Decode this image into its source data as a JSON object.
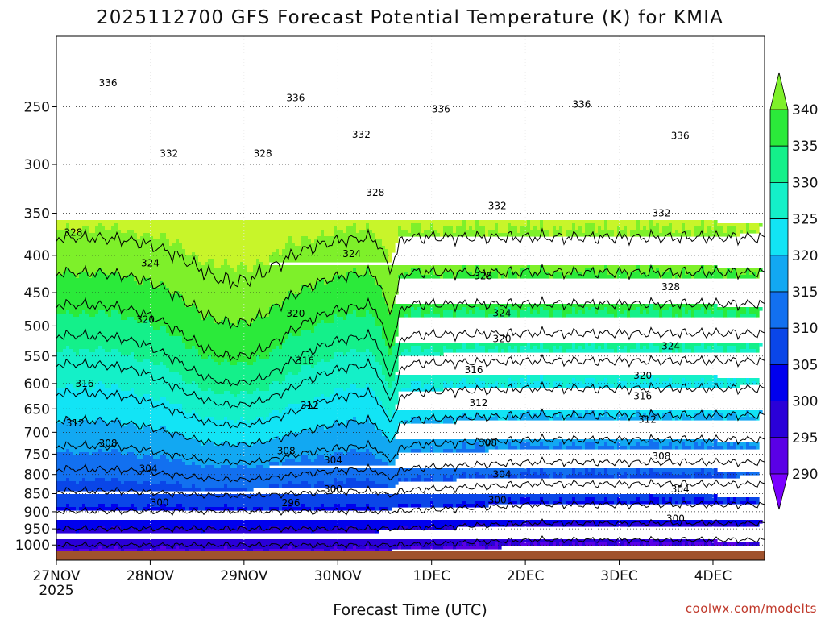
{
  "chart_data": {
    "type": "heatmap",
    "title": "2025112700 GFS Forecast Potential Temperature (K) for KMIA",
    "xlabel": "Forecast Time (UTC)",
    "ylabel": "",
    "credit": "coolwx.com/modelts",
    "x_ticks": [
      "27NOV",
      "28NOV",
      "29NOV",
      "30NOV",
      "1DEC",
      "2DEC",
      "3DEC",
      "4DEC"
    ],
    "x_year": "2025",
    "y_ticks": [
      250,
      300,
      350,
      400,
      450,
      500,
      550,
      600,
      650,
      700,
      750,
      800,
      850,
      900,
      950,
      1000
    ],
    "y_range_hpa": [
      200,
      1020
    ],
    "x_range_days": [
      0,
      7.55
    ],
    "y_scale": "log-pressure",
    "colorbar": {
      "ticks": [
        340,
        335,
        330,
        325,
        320,
        315,
        310,
        305,
        300,
        295,
        290
      ],
      "levels": [
        285,
        290,
        295,
        300,
        305,
        310,
        315,
        320,
        325,
        330,
        335,
        340,
        345
      ],
      "colors": [
        "#7a00ff",
        "#5a00e6",
        "#2a00d8",
        "#0000ee",
        "#0a46e8",
        "#1270f0",
        "#12a8f2",
        "#12e4f5",
        "#14f0c8",
        "#14f08a",
        "#2bea3a",
        "#7ef02a",
        "#c8f52a"
      ]
    },
    "contour_interval": 4,
    "contour_labels": [
      {
        "label": "336",
        "x": 0.55,
        "p": 232
      },
      {
        "label": "336",
        "x": 2.55,
        "p": 243
      },
      {
        "label": "336",
        "x": 4.1,
        "p": 252
      },
      {
        "label": "336",
        "x": 5.6,
        "p": 248
      },
      {
        "label": "336",
        "x": 6.65,
        "p": 274
      },
      {
        "label": "332",
        "x": 1.2,
        "p": 290
      },
      {
        "label": "332",
        "x": 3.25,
        "p": 273
      },
      {
        "label": "332",
        "x": 4.7,
        "p": 342
      },
      {
        "label": "332",
        "x": 6.45,
        "p": 350
      },
      {
        "label": "328",
        "x": 2.2,
        "p": 290
      },
      {
        "label": "328",
        "x": 3.4,
        "p": 328
      },
      {
        "label": "328",
        "x": 0.18,
        "p": 372
      },
      {
        "label": "328",
        "x": 4.55,
        "p": 427
      },
      {
        "label": "328",
        "x": 6.55,
        "p": 442
      },
      {
        "label": "324",
        "x": 1.0,
        "p": 410
      },
      {
        "label": "324",
        "x": 3.15,
        "p": 398
      },
      {
        "label": "324",
        "x": 4.75,
        "p": 480
      },
      {
        "label": "324",
        "x": 6.55,
        "p": 533
      },
      {
        "label": "320",
        "x": 0.95,
        "p": 490
      },
      {
        "label": "320",
        "x": 2.55,
        "p": 481
      },
      {
        "label": "320",
        "x": 4.75,
        "p": 521
      },
      {
        "label": "320",
        "x": 6.25,
        "p": 585
      },
      {
        "label": "316",
        "x": 0.3,
        "p": 600
      },
      {
        "label": "316",
        "x": 2.65,
        "p": 558
      },
      {
        "label": "316",
        "x": 4.45,
        "p": 575
      },
      {
        "label": "316",
        "x": 6.25,
        "p": 624
      },
      {
        "label": "312",
        "x": 0.2,
        "p": 680
      },
      {
        "label": "312",
        "x": 2.7,
        "p": 643
      },
      {
        "label": "312",
        "x": 4.5,
        "p": 638
      },
      {
        "label": "312",
        "x": 6.3,
        "p": 672
      },
      {
        "label": "308",
        "x": 0.55,
        "p": 725
      },
      {
        "label": "308",
        "x": 2.45,
        "p": 743
      },
      {
        "label": "308",
        "x": 4.6,
        "p": 724
      },
      {
        "label": "308",
        "x": 6.45,
        "p": 755
      },
      {
        "label": "304",
        "x": 0.98,
        "p": 785
      },
      {
        "label": "304",
        "x": 2.95,
        "p": 765
      },
      {
        "label": "304",
        "x": 4.75,
        "p": 800
      },
      {
        "label": "304",
        "x": 6.65,
        "p": 838
      },
      {
        "label": "300",
        "x": 1.1,
        "p": 874
      },
      {
        "label": "300",
        "x": 2.95,
        "p": 838
      },
      {
        "label": "300",
        "x": 4.7,
        "p": 867
      },
      {
        "label": "300",
        "x": 6.6,
        "p": 920
      },
      {
        "label": "296",
        "x": 2.5,
        "p": 875
      }
    ]
  }
}
